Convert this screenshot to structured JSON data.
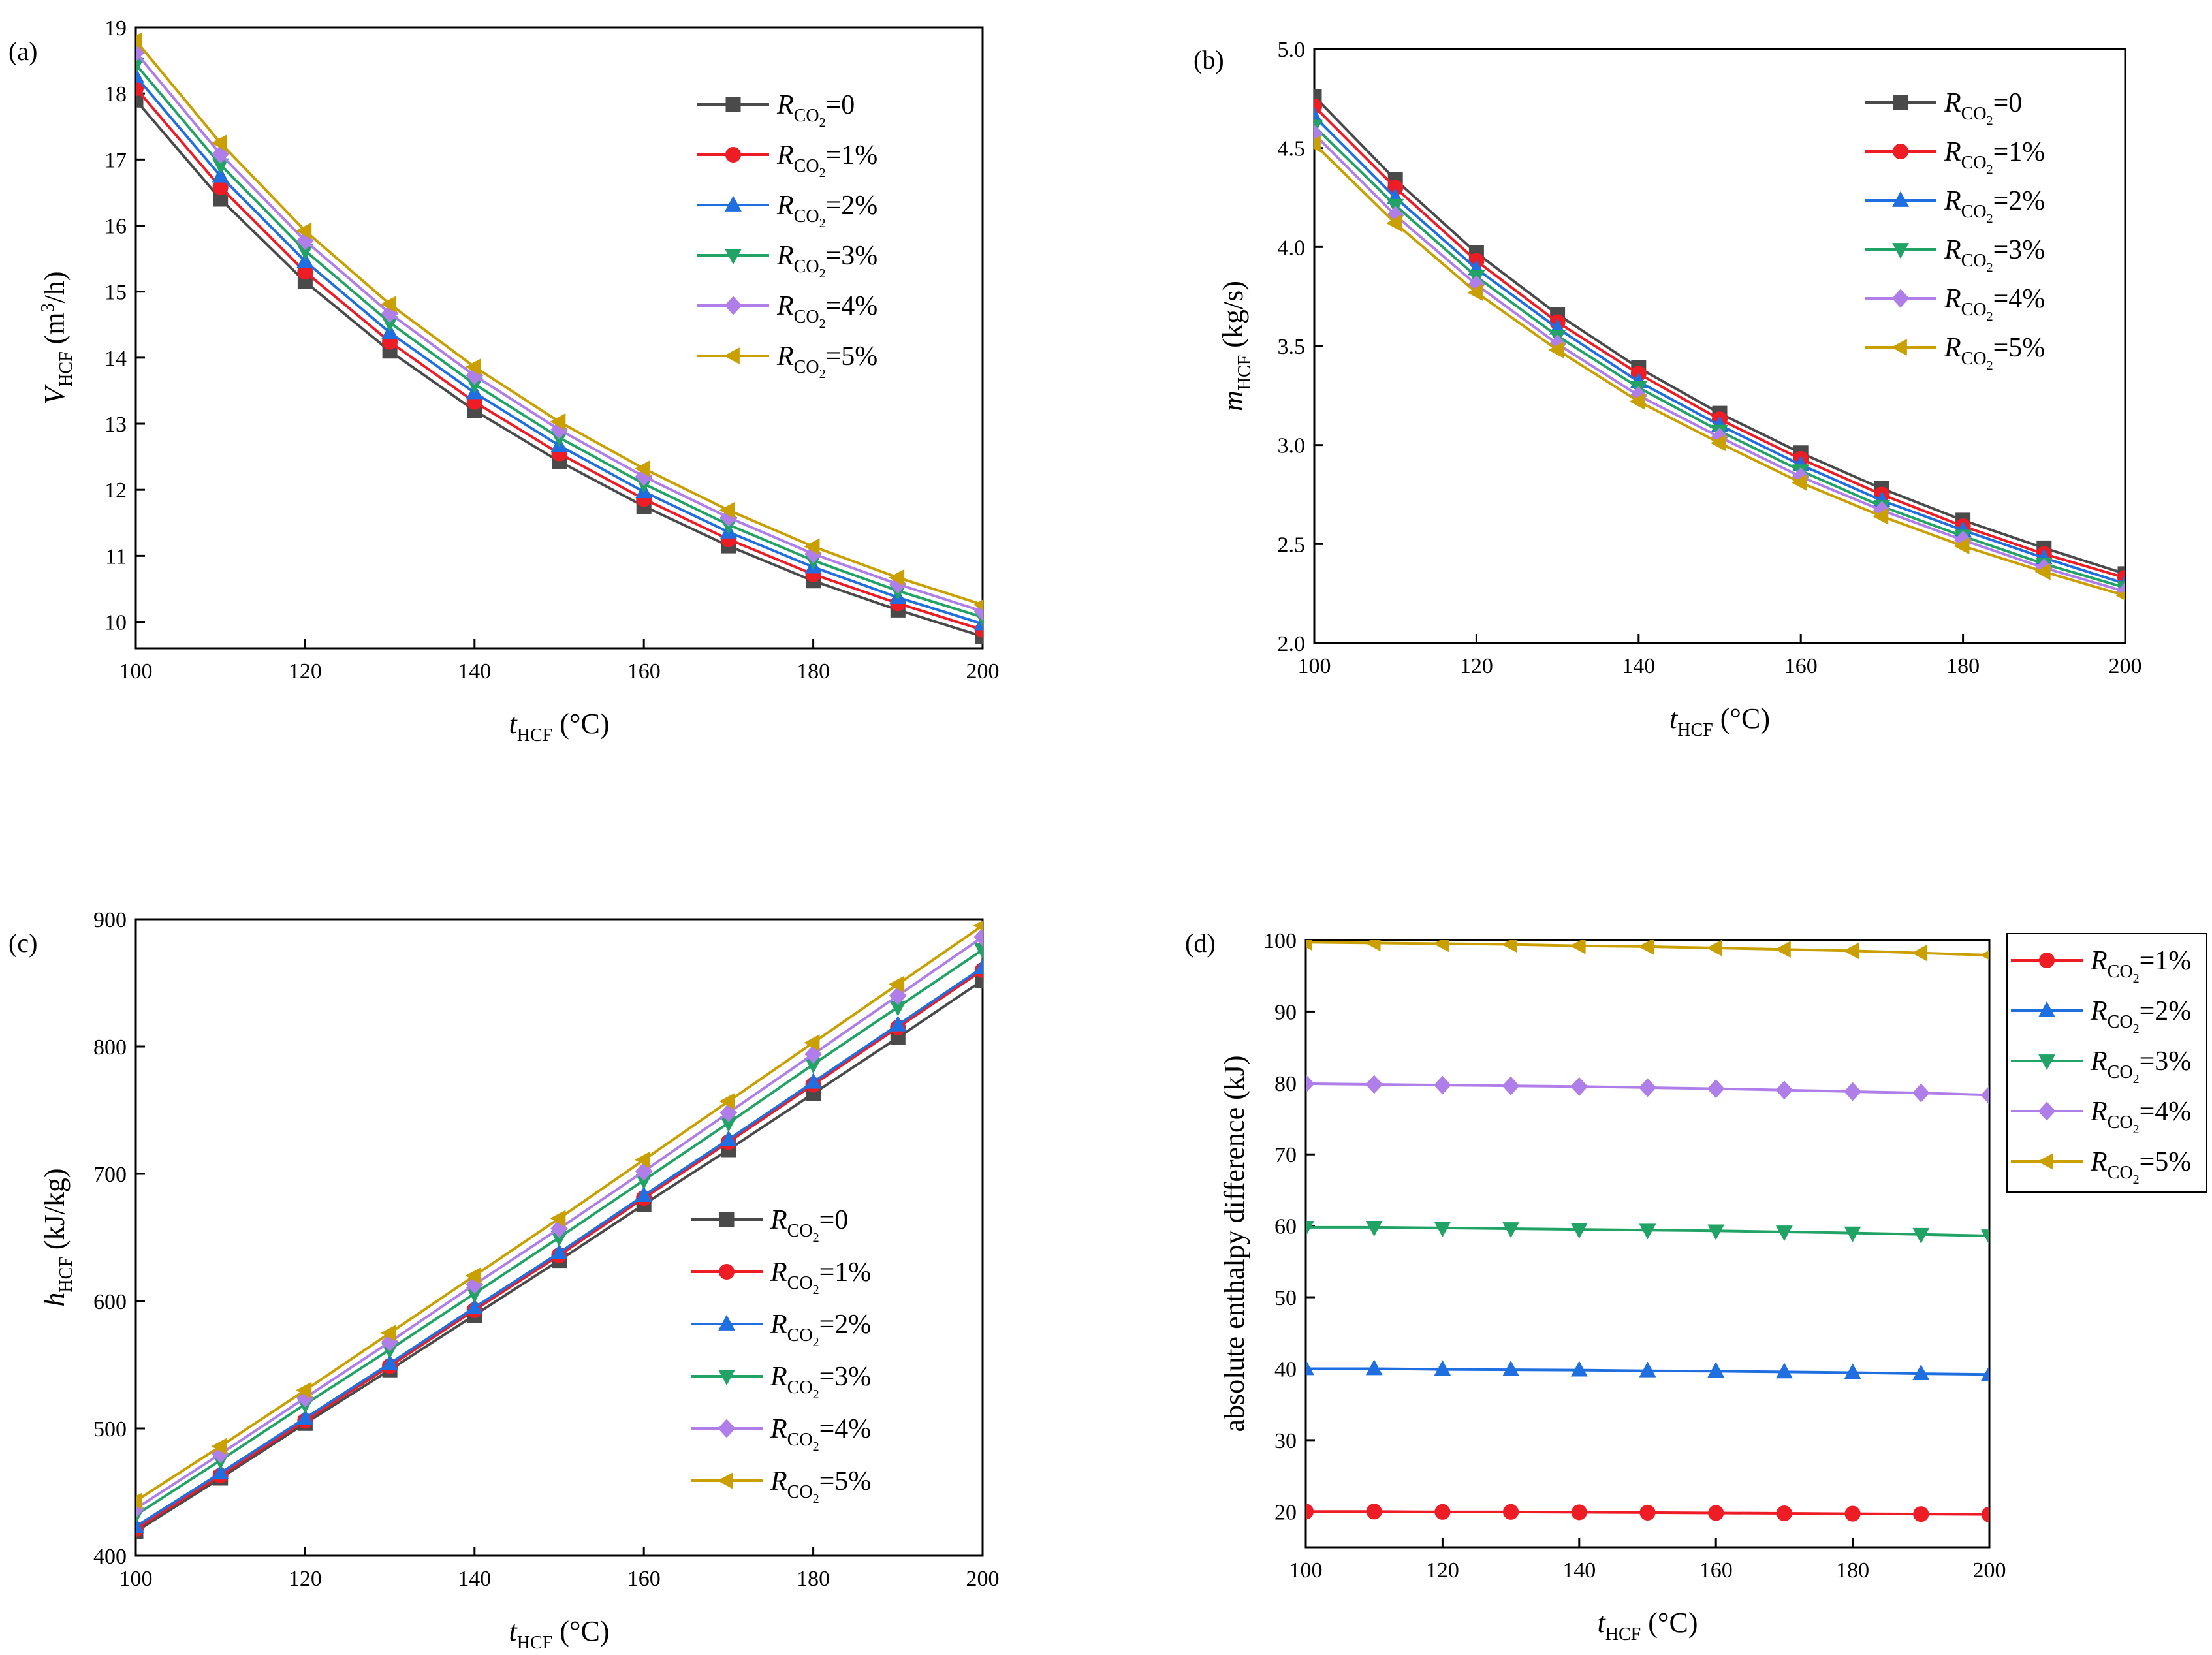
{
  "figure": {
    "panels": [
      "(a)",
      "(b)",
      "(c)",
      "(d)"
    ],
    "x_axis_label": {
      "symbol": "t",
      "subscript": "HCF",
      "unit": "(°C)"
    }
  },
  "series_style": [
    {
      "name": "0",
      "color": "#4a4a4a",
      "marker": "square"
    },
    {
      "name": "1%",
      "color": "#ee1c25",
      "marker": "circle"
    },
    {
      "name": "2%",
      "color": "#1f6fe0",
      "marker": "triangle-up"
    },
    {
      "name": "3%",
      "color": "#21a366",
      "marker": "triangle-down"
    },
    {
      "name": "4%",
      "color": "#b07ee8",
      "marker": "diamond"
    },
    {
      "name": "5%",
      "color": "#c9a000",
      "marker": "triangle-left"
    }
  ],
  "chart_data": [
    {
      "id": "a",
      "type": "line",
      "panel_label": "(a)",
      "x": [
        100,
        110,
        120,
        130,
        140,
        150,
        160,
        170,
        180,
        190,
        200
      ],
      "xlim": [
        100,
        200
      ],
      "ylim": [
        9.6,
        19
      ],
      "xticks": [
        100,
        120,
        140,
        160,
        180,
        200
      ],
      "yticks": [
        10,
        11,
        12,
        13,
        14,
        15,
        16,
        17,
        18,
        19
      ],
      "ylabel": {
        "symbol": "V",
        "subscript": "HCF",
        "unit": "(m",
        "sup": "3",
        "unit_end": "/h)"
      },
      "xlabel": {
        "symbol": "t",
        "subscript": "HCF",
        "unit": "(°C)"
      },
      "legend": {
        "position": "top-right",
        "symbol": "R",
        "subscript": "CO",
        "sub2": "2",
        "labels": [
          "=0",
          "=1%",
          "=2%",
          "=3%",
          "=4%",
          "=5%"
        ]
      },
      "series": [
        {
          "name": "R_CO2=0",
          "values": [
            17.9,
            16.4,
            15.15,
            14.1,
            13.2,
            12.43,
            11.75,
            11.15,
            10.62,
            10.18,
            9.78
          ]
        },
        {
          "name": "R_CO2=1%",
          "values": [
            18.08,
            16.58,
            15.3,
            14.24,
            13.33,
            12.55,
            11.86,
            11.25,
            10.72,
            10.28,
            9.88
          ]
        },
        {
          "name": "R_CO2=2%",
          "values": [
            18.26,
            16.75,
            15.46,
            14.38,
            13.47,
            12.67,
            11.97,
            11.36,
            10.83,
            10.37,
            9.97
          ]
        },
        {
          "name": "R_CO2=3%",
          "values": [
            18.44,
            16.92,
            15.62,
            14.53,
            13.6,
            12.79,
            12.09,
            11.47,
            10.93,
            10.47,
            10.07
          ]
        },
        {
          "name": "R_CO2=4%",
          "values": [
            18.62,
            17.08,
            15.77,
            14.67,
            13.73,
            12.91,
            12.2,
            11.58,
            11.03,
            10.57,
            10.16
          ]
        },
        {
          "name": "R_CO2=5%",
          "values": [
            18.8,
            17.25,
            15.92,
            14.81,
            13.86,
            13.03,
            12.32,
            11.69,
            11.14,
            10.67,
            10.26
          ]
        }
      ]
    },
    {
      "id": "b",
      "type": "line",
      "panel_label": "(b)",
      "x": [
        100,
        110,
        120,
        130,
        140,
        150,
        160,
        170,
        180,
        190,
        200
      ],
      "xlim": [
        100,
        200
      ],
      "ylim": [
        2.0,
        5.0
      ],
      "xticks": [
        100,
        120,
        140,
        160,
        180,
        200
      ],
      "yticks": [
        2.0,
        2.5,
        3.0,
        3.5,
        4.0,
        4.5,
        5.0
      ],
      "ylabel": {
        "symbol": "m",
        "subscript": "HCF",
        "unit": "(kg/s)"
      },
      "xlabel": {
        "symbol": "t",
        "subscript": "HCF",
        "unit": "(°C)"
      },
      "legend": {
        "position": "top-right",
        "symbol": "R",
        "subscript": "CO",
        "sub2": "2",
        "labels": [
          "=0",
          "=1%",
          "=2%",
          "=3%",
          "=4%",
          "=5%"
        ]
      },
      "series": [
        {
          "name": "R_CO2=0",
          "values": [
            4.76,
            4.34,
            3.97,
            3.66,
            3.39,
            3.16,
            2.96,
            2.78,
            2.62,
            2.48,
            2.35
          ]
        },
        {
          "name": "R_CO2=1%",
          "values": [
            4.71,
            4.3,
            3.93,
            3.62,
            3.36,
            3.13,
            2.93,
            2.75,
            2.59,
            2.45,
            2.33
          ]
        },
        {
          "name": "R_CO2=2%",
          "values": [
            4.66,
            4.25,
            3.89,
            3.59,
            3.32,
            3.1,
            2.9,
            2.72,
            2.57,
            2.43,
            2.3
          ]
        },
        {
          "name": "R_CO2=3%",
          "values": [
            4.61,
            4.21,
            3.85,
            3.55,
            3.29,
            3.07,
            2.87,
            2.69,
            2.54,
            2.4,
            2.28
          ]
        },
        {
          "name": "R_CO2=4%",
          "values": [
            4.57,
            4.16,
            3.81,
            3.51,
            3.25,
            3.04,
            2.84,
            2.67,
            2.52,
            2.38,
            2.26
          ]
        },
        {
          "name": "R_CO2=5%",
          "values": [
            4.52,
            4.12,
            3.77,
            3.48,
            3.22,
            3.01,
            2.81,
            2.64,
            2.49,
            2.36,
            2.24
          ]
        }
      ]
    },
    {
      "id": "c",
      "type": "line",
      "panel_label": "(c)",
      "x": [
        100,
        110,
        120,
        130,
        140,
        150,
        160,
        170,
        180,
        190,
        200
      ],
      "xlim": [
        100,
        200
      ],
      "ylim": [
        400,
        900
      ],
      "xticks": [
        100,
        120,
        140,
        160,
        180,
        200
      ],
      "yticks": [
        400,
        500,
        600,
        700,
        800,
        900
      ],
      "ylabel": {
        "symbol": "h",
        "subscript": "HCF",
        "unit": "(kJ/kg)"
      },
      "xlabel": {
        "symbol": "t",
        "subscript": "HCF",
        "unit": "(°C)"
      },
      "legend": {
        "position": "lower-right",
        "symbol": "R",
        "subscript": "CO",
        "sub2": "2",
        "labels": [
          "=0",
          "=1%",
          "=2%",
          "=3%",
          "=4%",
          "=5%"
        ]
      },
      "series": [
        {
          "name": "R_CO2=0",
          "values": [
            419,
            461,
            504,
            546,
            589,
            632,
            676,
            719,
            763,
            807,
            852
          ]
        },
        {
          "name": "R_CO2=1%",
          "values": [
            421,
            463,
            506,
            549,
            593,
            636,
            681,
            725,
            770,
            815,
            860
          ]
        },
        {
          "name": "R_CO2=2%",
          "values": [
            423,
            465,
            508,
            551,
            595,
            638,
            683,
            727,
            772,
            817,
            862
          ]
        },
        {
          "name": "R_CO2=3%",
          "values": [
            432,
            475,
            519,
            562,
            606,
            650,
            695,
            740,
            786,
            831,
            876
          ]
        },
        {
          "name": "R_CO2=4%",
          "values": [
            437,
            480,
            524,
            568,
            613,
            657,
            702,
            748,
            794,
            840,
            886
          ]
        },
        {
          "name": "R_CO2=5%",
          "values": [
            443,
            486,
            530,
            575,
            620,
            665,
            711,
            757,
            803,
            849,
            895
          ]
        }
      ]
    },
    {
      "id": "d",
      "type": "line",
      "panel_label": "(d)",
      "x": [
        100,
        110,
        120,
        130,
        140,
        150,
        160,
        170,
        180,
        190,
        200
      ],
      "xlim": [
        100,
        200
      ],
      "ylim": [
        15,
        100
      ],
      "xticks": [
        100,
        120,
        140,
        160,
        180,
        200
      ],
      "yticks": [
        20,
        30,
        40,
        50,
        60,
        70,
        80,
        90,
        100
      ],
      "ylabel": {
        "text": "absolute enthalpy difference  (kJ)"
      },
      "xlabel": {
        "symbol": "t",
        "subscript": "HCF",
        "unit": "(°C)"
      },
      "legend": {
        "position": "outside-right",
        "symbol": "R",
        "subscript": "CO",
        "sub2": "2",
        "labels": [
          "=1%",
          "=2%",
          "=3%",
          "=4%",
          "=5%"
        ]
      },
      "series": [
        {
          "name": "R_CO2=1%",
          "values": [
            20.0,
            20.0,
            19.95,
            19.95,
            19.9,
            19.85,
            19.8,
            19.75,
            19.7,
            19.65,
            19.6
          ]
        },
        {
          "name": "R_CO2=2%",
          "values": [
            40.0,
            40.0,
            39.9,
            39.85,
            39.8,
            39.7,
            39.65,
            39.55,
            39.45,
            39.3,
            39.2
          ]
        },
        {
          "name": "R_CO2=3%",
          "values": [
            59.8,
            59.8,
            59.7,
            59.6,
            59.5,
            59.4,
            59.3,
            59.15,
            59.0,
            58.8,
            58.6
          ]
        },
        {
          "name": "R_CO2=4%",
          "values": [
            79.9,
            79.8,
            79.7,
            79.6,
            79.5,
            79.35,
            79.2,
            79.0,
            78.8,
            78.6,
            78.3
          ]
        },
        {
          "name": "R_CO2=5%",
          "values": [
            99.7,
            99.6,
            99.5,
            99.4,
            99.2,
            99.1,
            98.9,
            98.7,
            98.5,
            98.2,
            97.9
          ]
        }
      ]
    }
  ]
}
